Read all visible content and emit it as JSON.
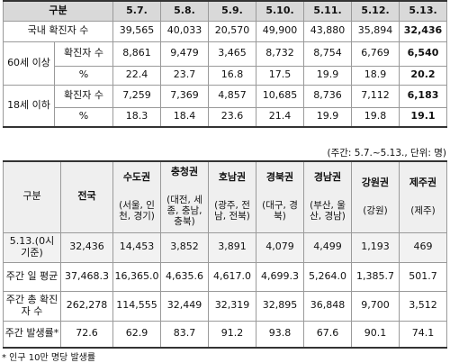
{
  "table1": {
    "header": [
      "구분",
      "5.7.",
      "5.8.",
      "5.9.",
      "5.10.",
      "5.11.",
      "5.12.",
      "5.13."
    ],
    "rows": [
      {
        "group": "국내 확진자 수",
        "values": [
          "39,565",
          "40,033",
          "20,570",
          "49,900",
          "43,880",
          "35,894",
          "32,436"
        ]
      },
      {
        "group": "60세 이상",
        "sub": [
          {
            "label": "확진자 수",
            "values": [
              "8,861",
              "9,479",
              "3,465",
              "8,732",
              "8,754",
              "6,769",
              "6,540"
            ]
          },
          {
            "label": "%",
            "values": [
              "22.4",
              "23.7",
              "16.8",
              "17.5",
              "19.9",
              "18.9",
              "20.2"
            ]
          }
        ]
      },
      {
        "group": "18세 이하",
        "sub": [
          {
            "label": "확진자 수",
            "values": [
              "7,259",
              "7,369",
              "4,857",
              "10,685",
              "8,736",
              "7,112",
              "6,183"
            ]
          },
          {
            "label": "%",
            "values": [
              "18.3",
              "18.4",
              "23.6",
              "21.4",
              "19.9",
              "19.8",
              "19.1"
            ]
          }
        ]
      }
    ]
  },
  "note": "(주간: 5.7.~5.13., 단위: 명)",
  "table2": {
    "header": {
      "label": "구분",
      "columns": [
        {
          "name": "전국"
        },
        {
          "name": "수도권",
          "sub": "(서울, 인천, 경기)"
        },
        {
          "name": "충청권",
          "sub": "(대전, 세종, 충남, 충북)"
        },
        {
          "name": "호남권",
          "sub": "(광주, 전남, 전북)"
        },
        {
          "name": "경북권",
          "sub": "(대구, 경북)"
        },
        {
          "name": "경남권",
          "sub": "(부산, 울산, 경남)"
        },
        {
          "name": "강원권",
          "sub": "(강원)"
        },
        {
          "name": "제주권",
          "sub": "(제주)"
        }
      ]
    },
    "rows": [
      {
        "label": "5.13.(0시 기준)",
        "values": [
          "32,436",
          "14,453",
          "3,852",
          "3,891",
          "4,079",
          "4,499",
          "1,193",
          "469"
        ]
      },
      {
        "label": "주간 일 평균",
        "values": [
          "37,468.3",
          "16,365.0",
          "4,635.6",
          "4,617.0",
          "4,699.3",
          "5,264.0",
          "1,385.7",
          "501.7"
        ]
      },
      {
        "label": "주간 총 확진자 수",
        "values": [
          "262,278",
          "114,555",
          "32,449",
          "32,319",
          "32,895",
          "36,848",
          "9,700",
          "3,512"
        ]
      },
      {
        "label": "주간 발생률*",
        "values": [
          "72.6",
          "62.9",
          "83.7",
          "91.2",
          "93.8",
          "67.6",
          "90.1",
          "74.1"
        ]
      }
    ]
  },
  "footnote": "* 인구 10만 명당 발생률"
}
